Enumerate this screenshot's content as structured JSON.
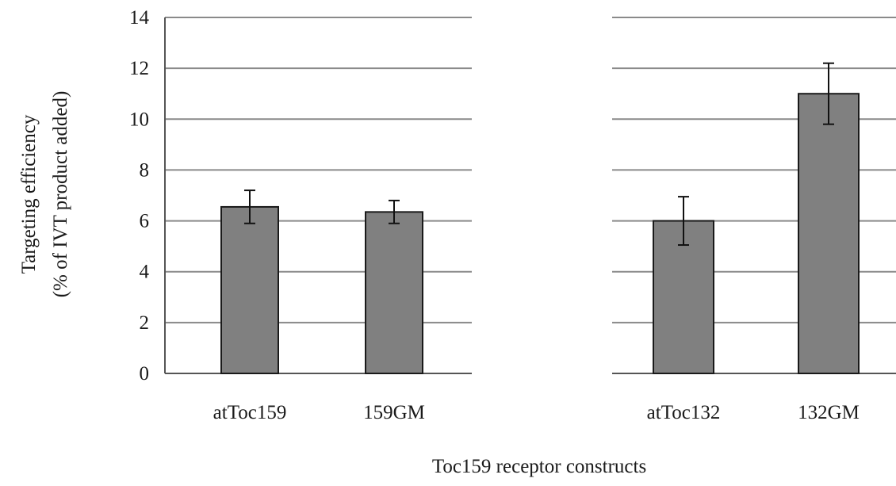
{
  "chart_data": {
    "type": "bar",
    "title": "",
    "xlabel": "Toc159 receptor constructs",
    "ylabel_line1": "Targeting efficiency",
    "ylabel_line2": "(% of IVT product added)",
    "ylim": [
      0,
      14
    ],
    "yticks": [
      0,
      2,
      4,
      6,
      8,
      10,
      12,
      14
    ],
    "grid": true,
    "bar_color": "#808080",
    "bar_edge_color": "#1a1a1a",
    "grid_color": "#8a8a8a",
    "groups": [
      {
        "categories": [
          "atToc159",
          "159GM"
        ],
        "values": [
          6.55,
          6.35
        ],
        "errors": [
          0.65,
          0.45
        ]
      },
      {
        "categories": [
          "atToc132",
          "132GM"
        ],
        "values": [
          6.0,
          11.0
        ],
        "errors": [
          0.95,
          1.2
        ]
      }
    ]
  }
}
